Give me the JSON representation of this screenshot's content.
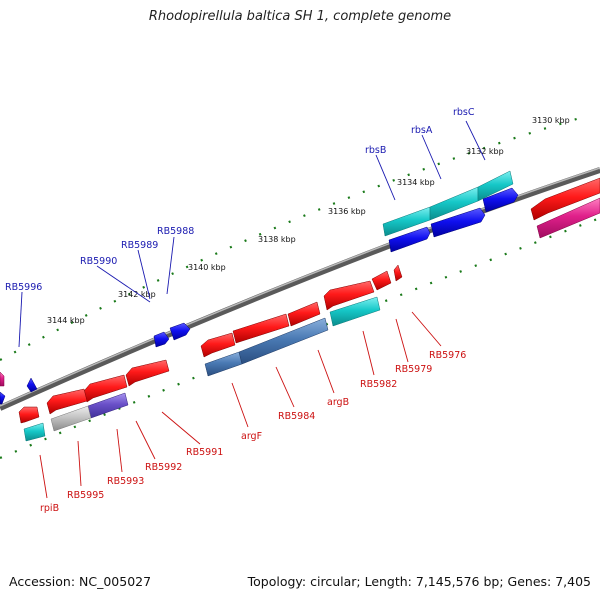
{
  "title": "Rhodopirellula baltica SH 1, complete genome",
  "footer": {
    "accession": "Accession: NC_005027",
    "summary": "Topology: circular; Length: 7,145,576 bp; Genes: 7,405"
  },
  "colors": {
    "backbone": "#7a7a7a",
    "ticks": "#1a7a1a",
    "forward_cds": "#1a1ae6",
    "reverse_cds": "#e61a1a",
    "cyan_feature": "#19c8c8",
    "steelblue_feature": "#4a7ab4",
    "magenta_feature": "#e0208a",
    "violet_feature": "#6a50c8",
    "grey_feature": "#b8b8b8",
    "upper_label_color": "#1a1ab0",
    "lower_label_color": "#cc1111"
  },
  "scale_labels": [
    "3130 kbp",
    "3132 kbp",
    "3134 kbp",
    "3136 kbp",
    "3138 kbp",
    "3140 kbp",
    "3142 kbp",
    "3144 kbp"
  ],
  "upper_gene_labels": [
    "rbsC",
    "rbsA",
    "rbsB",
    "RB5988",
    "RB5989",
    "RB5990",
    "RB5996"
  ],
  "lower_gene_labels": [
    "RB5976",
    "RB5979",
    "RB5982",
    "argB",
    "RB5984",
    "argF",
    "RB5991",
    "RB5992",
    "RB5993",
    "RB5995",
    "rpiB"
  ]
}
